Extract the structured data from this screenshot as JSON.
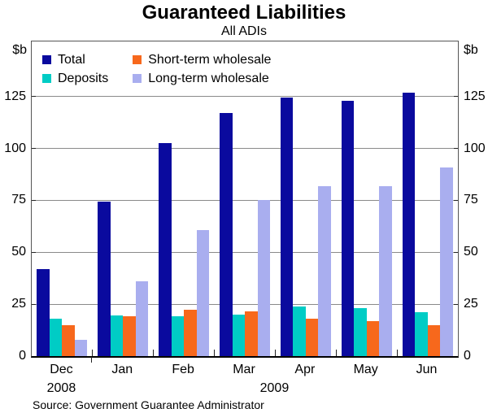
{
  "chart_data": {
    "type": "bar",
    "title": "Guaranteed Liabilities",
    "subtitle": "All ADIs",
    "unit": "$b",
    "source": "Source: Government Guarantee Administrator",
    "categories": [
      "Dec",
      "Jan",
      "Feb",
      "Mar",
      "Apr",
      "May",
      "Jun"
    ],
    "year_labels": [
      {
        "text": "2008",
        "position_month_index": 0
      },
      {
        "text": "2009",
        "position_month_index": 3.5
      }
    ],
    "year_boundary_after": "Dec",
    "series": [
      {
        "name": "Total",
        "color": "#0A0A9E",
        "values": [
          42,
          74.5,
          102.5,
          117,
          124.5,
          123,
          127
        ]
      },
      {
        "name": "Deposits",
        "color": "#00CCC5",
        "values": [
          18,
          19.5,
          19,
          20,
          24,
          23,
          21
        ]
      },
      {
        "name": "Short-term wholesale",
        "color": "#F7681C",
        "values": [
          15,
          19,
          22.5,
          21.5,
          18,
          17,
          15
        ]
      },
      {
        "name": "Long-term wholesale",
        "color": "#A9AEEF",
        "values": [
          8,
          36,
          60.5,
          75,
          82,
          82,
          91
        ]
      }
    ],
    "ylim": [
      0,
      151.5
    ],
    "yticks": [
      0,
      25,
      50,
      75,
      100,
      125
    ],
    "grid": true,
    "legend_position": "top-left",
    "colors": {
      "gridline": "#8a8a8a",
      "frame": "#555555",
      "axis": "#000000"
    }
  }
}
